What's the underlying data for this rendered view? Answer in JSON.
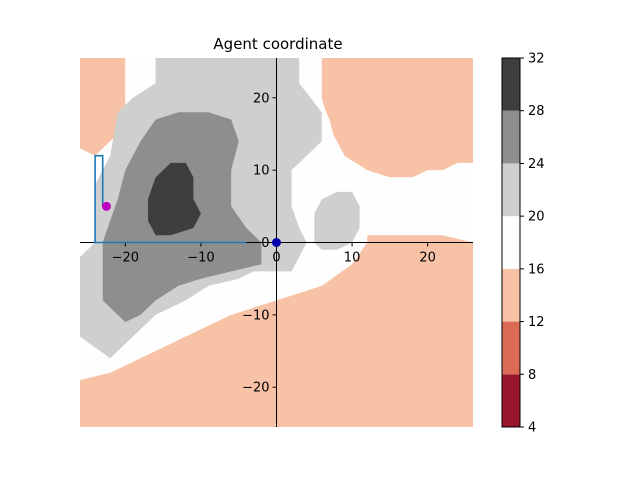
{
  "chart_data": {
    "type": "heatmap",
    "title": "Agent coordinate",
    "xlabel": "",
    "ylabel": "",
    "xlim": [
      -26,
      26
    ],
    "ylim": [
      -25.5,
      25.5
    ],
    "x_ticks": [
      -20,
      -10,
      0,
      10,
      20
    ],
    "y_ticks": [
      -20,
      -10,
      0,
      10,
      20
    ],
    "grid": false,
    "spines": "centered at origin",
    "colormap": "RdGy (reversed)",
    "color_levels": [
      4,
      8,
      12,
      16,
      20,
      24,
      28,
      32
    ],
    "level_colors": [
      "#99172d",
      "#dc6b56",
      "#f8c2a6",
      "#fefefe",
      "#cfcfcf",
      "#8e8e8e",
      "#3e3e3e"
    ],
    "colorbar_ticks": [
      4,
      8,
      12,
      16,
      20,
      24,
      28,
      32
    ],
    "points": [
      {
        "name": "origin",
        "x": 0,
        "y": 0,
        "color": "#0000aa"
      },
      {
        "name": "agent",
        "x": -22.5,
        "y": 5,
        "color": "#c000c0"
      }
    ],
    "path": {
      "color": "#1f77b4",
      "x": [
        -4,
        -24,
        -24,
        -23,
        -23
      ],
      "y": [
        0,
        0,
        12,
        12,
        5
      ]
    },
    "regions": [
      {
        "level": 0,
        "poly": [
          [
            -26,
            -25.5
          ],
          [
            -26,
            -22
          ],
          [
            -22,
            -21
          ],
          [
            -18,
            -20
          ],
          [
            -14,
            -19
          ],
          [
            -10,
            -19
          ],
          [
            -6,
            -18
          ],
          [
            -2,
            -17
          ],
          [
            1,
            -16
          ],
          [
            4,
            -14
          ],
          [
            7,
            -13
          ],
          [
            10,
            -12.5
          ],
          [
            13,
            -12
          ],
          [
            15,
            -8
          ],
          [
            18,
            -3
          ],
          [
            21,
            -1
          ],
          [
            26,
            -3
          ],
          [
            26,
            -25.5
          ]
        ]
      },
      {
        "level": 0,
        "poly": [
          [
            8,
            25.5
          ],
          [
            8,
            24
          ],
          [
            12,
            22
          ],
          [
            15,
            20
          ],
          [
            17,
            20
          ],
          [
            19,
            21
          ],
          [
            21,
            22
          ],
          [
            23,
            22
          ],
          [
            26,
            22
          ],
          [
            26,
            25.5
          ]
        ]
      },
      {
        "level": 1,
        "poly": [
          [
            -26,
            -25.5
          ],
          [
            -26,
            -24
          ],
          [
            -22,
            -23
          ],
          [
            -18,
            -23
          ],
          [
            -14,
            -22
          ],
          [
            -8,
            -21
          ],
          [
            -2,
            -19
          ],
          [
            2,
            -18
          ],
          [
            6,
            -17
          ],
          [
            10,
            -15
          ],
          [
            13,
            -14
          ],
          [
            15,
            -12
          ],
          [
            17,
            -8
          ],
          [
            19,
            -5
          ],
          [
            21,
            -3
          ],
          [
            23,
            -2
          ],
          [
            26,
            -3
          ],
          [
            26,
            -25.5
          ]
        ]
      },
      {
        "level": 1,
        "poly": [
          [
            8,
            25.5
          ],
          [
            8,
            22
          ],
          [
            10,
            19
          ],
          [
            12,
            17
          ],
          [
            14,
            16
          ],
          [
            16,
            15
          ],
          [
            18,
            14
          ],
          [
            20,
            15
          ],
          [
            22,
            16
          ],
          [
            24,
            16
          ],
          [
            26,
            16
          ],
          [
            26,
            25.5
          ]
        ]
      },
      {
        "level": 1,
        "poly": [
          [
            -26,
            25.5
          ],
          [
            -26,
            16
          ],
          [
            -24,
            16
          ],
          [
            -23,
            17
          ],
          [
            -23,
            25.5
          ]
        ]
      },
      {
        "level": 2,
        "poly": [
          [
            -26,
            -16
          ],
          [
            -26,
            -19
          ],
          [
            -22,
            -18
          ],
          [
            -18,
            -16
          ],
          [
            -14,
            -14
          ],
          [
            -10,
            -12
          ],
          [
            -6,
            -10
          ],
          [
            -3,
            -9
          ],
          [
            0,
            -8
          ],
          [
            3,
            -7
          ],
          [
            6,
            -6
          ],
          [
            10,
            -3
          ],
          [
            12,
            0
          ],
          [
            12,
            1
          ],
          [
            18,
            1
          ],
          [
            20,
            1
          ],
          [
            22,
            1
          ],
          [
            26,
            0
          ],
          [
            26,
            -25.5
          ],
          [
            -26,
            -25.5
          ]
        ]
      },
      {
        "level": 2,
        "poly": [
          [
            6,
            25.5
          ],
          [
            6,
            20
          ],
          [
            7,
            16
          ],
          [
            9,
            12
          ],
          [
            12,
            10
          ],
          [
            15,
            9
          ],
          [
            18,
            9
          ],
          [
            20,
            10
          ],
          [
            22,
            10
          ],
          [
            24,
            11
          ],
          [
            26,
            11
          ],
          [
            26,
            25.5
          ]
        ]
      },
      {
        "level": 2,
        "poly": [
          [
            -26,
            25.5
          ],
          [
            -26,
            13
          ],
          [
            -24,
            12
          ],
          [
            -22,
            14
          ],
          [
            -20,
            16
          ],
          [
            -20,
            20
          ],
          [
            -20,
            25.5
          ]
        ]
      },
      {
        "level": 3,
        "poly": [
          [
            -26,
            -15
          ],
          [
            -26,
            -11
          ],
          [
            -22,
            -12
          ],
          [
            -18,
            -11
          ],
          [
            -14,
            -8
          ],
          [
            -10,
            -6
          ],
          [
            -6,
            -5
          ],
          [
            -3,
            -4
          ],
          [
            0,
            -4
          ],
          [
            3,
            -3
          ],
          [
            6,
            -1
          ],
          [
            10,
            1
          ],
          [
            14,
            2
          ],
          [
            18,
            2
          ],
          [
            22,
            2
          ],
          [
            26,
            1
          ],
          [
            26,
            10
          ],
          [
            22,
            10
          ],
          [
            18,
            9
          ],
          [
            14,
            9
          ],
          [
            10,
            10
          ],
          [
            8,
            13
          ],
          [
            7,
            17
          ],
          [
            5,
            22
          ],
          [
            5,
            25.5
          ],
          [
            -20,
            25.5
          ],
          [
            -20,
            16
          ],
          [
            -22,
            14
          ],
          [
            -24,
            12
          ],
          [
            -26,
            12
          ]
        ]
      },
      {
        "level": 4,
        "poly": [
          [
            -26,
            -5
          ],
          [
            -26,
            -13
          ],
          [
            -22,
            -16
          ],
          [
            -20,
            -14
          ],
          [
            -16,
            -10
          ],
          [
            -12,
            -8
          ],
          [
            -9,
            -6
          ],
          [
            -5,
            -5
          ],
          [
            -3,
            -4
          ],
          [
            2,
            -4
          ],
          [
            3,
            -2
          ],
          [
            4,
            0
          ],
          [
            3,
            2
          ],
          [
            2,
            5
          ],
          [
            2,
            10
          ],
          [
            4,
            12
          ],
          [
            6,
            14
          ],
          [
            6,
            18
          ],
          [
            3,
            22
          ],
          [
            3,
            25.5
          ],
          [
            -16,
            25.5
          ],
          [
            -16,
            22
          ],
          [
            -19,
            20
          ],
          [
            -21,
            18
          ],
          [
            -22,
            12
          ],
          [
            -24,
            8
          ],
          [
            -24,
            0
          ],
          [
            -26,
            -2
          ]
        ]
      },
      {
        "level": 4,
        "poly": [
          [
            5,
            0
          ],
          [
            5,
            4
          ],
          [
            6,
            6
          ],
          [
            8,
            7
          ],
          [
            10,
            7
          ],
          [
            11,
            5
          ],
          [
            11,
            2
          ],
          [
            10,
            0
          ],
          [
            8,
            -1
          ],
          [
            6,
            -1
          ]
        ]
      },
      {
        "level": 5,
        "poly": [
          [
            -23,
            -4
          ],
          [
            -23,
            -8
          ],
          [
            -20,
            -11
          ],
          [
            -18,
            -10
          ],
          [
            -16,
            -8
          ],
          [
            -13,
            -6
          ],
          [
            -10,
            -5
          ],
          [
            -6,
            -4
          ],
          [
            -2,
            -3
          ],
          [
            -2,
            0
          ],
          [
            -4,
            2
          ],
          [
            -6,
            5
          ],
          [
            -6,
            10
          ],
          [
            -5,
            14
          ],
          [
            -6,
            17
          ],
          [
            -9,
            18
          ],
          [
            -13,
            18
          ],
          [
            -16,
            17
          ],
          [
            -18,
            14
          ],
          [
            -20,
            10
          ],
          [
            -21,
            6
          ],
          [
            -22,
            3
          ],
          [
            -23,
            0
          ]
        ]
      },
      {
        "level": 6,
        "poly": [
          [
            -17,
            3
          ],
          [
            -17,
            6
          ],
          [
            -16,
            9
          ],
          [
            -14,
            11
          ],
          [
            -12,
            11
          ],
          [
            -11,
            9
          ],
          [
            -11,
            6
          ],
          [
            -10,
            4
          ],
          [
            -11,
            2
          ],
          [
            -14,
            1
          ],
          [
            -16,
            1
          ]
        ]
      }
    ]
  }
}
